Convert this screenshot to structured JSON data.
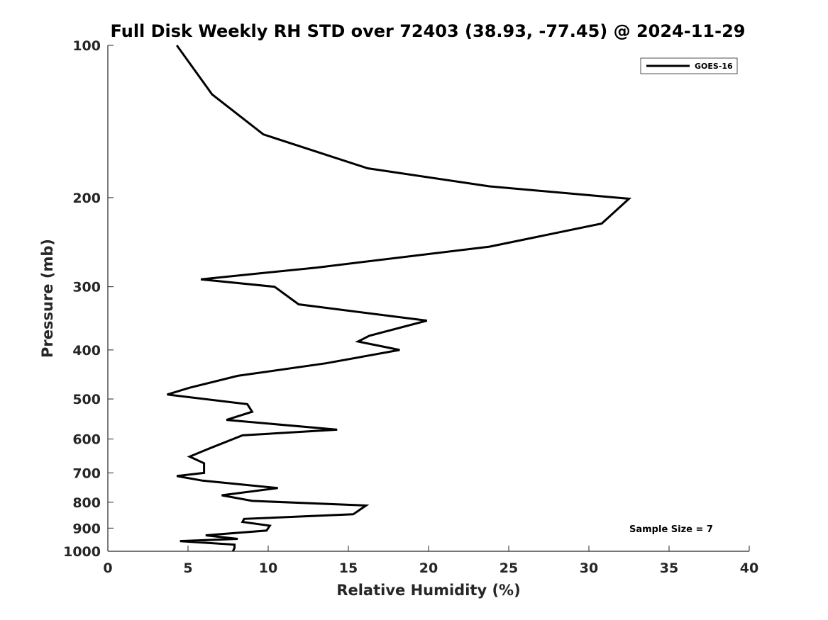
{
  "chart_data": {
    "type": "line",
    "title": "Full Disk Weekly RH STD over 72403 (38.93, -77.45) @ 2024-11-29",
    "xlabel": "Relative Humidity (%)",
    "ylabel": "Pressure (mb)",
    "xlim": [
      0,
      40
    ],
    "ylim": [
      100,
      1000
    ],
    "y_scale": "log",
    "y_reversed": true,
    "x_ticks": [
      "0",
      "5",
      "10",
      "15",
      "20",
      "25",
      "30",
      "35",
      "40"
    ],
    "y_ticks": [
      "100",
      "200",
      "300",
      "400",
      "500",
      "600",
      "700",
      "800",
      "900",
      "1000"
    ],
    "grid": false,
    "legend_position": "top-right",
    "series": [
      {
        "name": "GOES-16",
        "color": "#000000",
        "x": [
          4.3,
          6.5,
          9.7,
          16.2,
          23.8,
          32.5,
          30.8,
          23.8,
          13.0,
          5.8,
          10.4,
          11.9,
          19.9,
          16.3,
          15.6,
          18.2,
          13.6,
          8.1,
          5.1,
          3.7,
          8.7,
          9.0,
          7.4,
          14.3,
          8.4,
          6.4,
          5.1,
          6.0,
          6.0,
          4.3,
          5.9,
          10.6,
          7.1,
          9.0,
          16.1,
          15.3,
          8.5,
          8.4,
          10.1,
          9.9,
          6.1,
          8.1,
          4.5,
          7.9,
          7.9,
          7.8
        ],
        "y": [
          100,
          125,
          150,
          175,
          190,
          201,
          225,
          250,
          275,
          290,
          300,
          325,
          350,
          375,
          385,
          400,
          425,
          450,
          475,
          490,
          512,
          530,
          550,
          575,
          590,
          625,
          650,
          670,
          700,
          710,
          725,
          750,
          775,
          795,
          812,
          845,
          863,
          875,
          890,
          910,
          930,
          945,
          955,
          970,
          985,
          1000
        ]
      }
    ],
    "annotations": [
      "Sample Size = 7"
    ]
  }
}
